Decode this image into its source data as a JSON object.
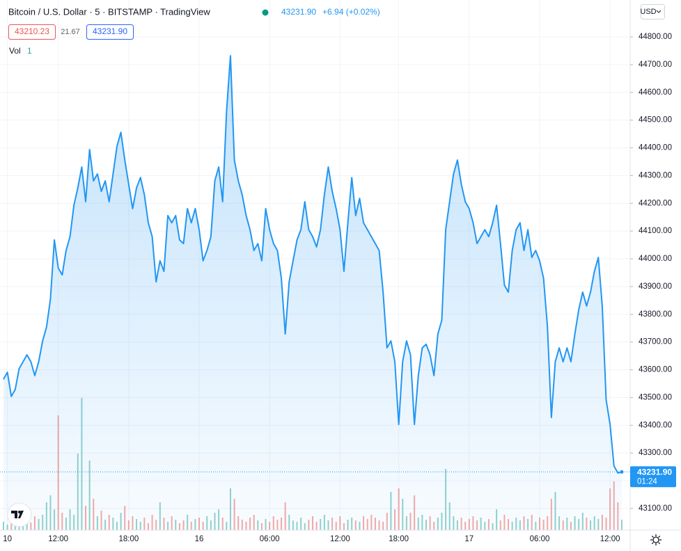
{
  "chart_data": {
    "type": "area",
    "title": "Bitcoin / U.S. Dollar · 5 · BITSTAMP · TradingView",
    "last_price": "43231.90",
    "change": "+6.94 (+0.02%)",
    "bid": "43210.23",
    "spread": "21.67",
    "ask": "43231.90",
    "currency": "USD",
    "price_tag": "43231.90",
    "countdown": "01:24",
    "color": "#2196f3",
    "grid": true,
    "ylim": [
      43022,
      44933
    ],
    "yticks": [
      {
        "value": 43100,
        "label": "43100.00"
      },
      {
        "value": 43200,
        "label": "43200.00"
      },
      {
        "value": 43300,
        "label": "43300.00"
      },
      {
        "value": 43400,
        "label": "43400.00"
      },
      {
        "value": 43500,
        "label": "43500.00"
      },
      {
        "value": 43600,
        "label": "43600.00"
      },
      {
        "value": 43700,
        "label": "43700.00"
      },
      {
        "value": 43800,
        "label": "43800.00"
      },
      {
        "value": 43900,
        "label": "43900.00"
      },
      {
        "value": 44000,
        "label": "44000.00"
      },
      {
        "value": 44100,
        "label": "44100.00"
      },
      {
        "value": 44200,
        "label": "44200.00"
      },
      {
        "value": 44300,
        "label": "44300.00"
      },
      {
        "value": 44400,
        "label": "44400.00"
      },
      {
        "value": 44500,
        "label": "44500.00"
      },
      {
        "value": 44600,
        "label": "44600.00"
      },
      {
        "value": 44700,
        "label": "44700.00"
      },
      {
        "value": 44800,
        "label": "44800.00"
      }
    ],
    "categories": [
      null,
      "10",
      null,
      null,
      null,
      null,
      null,
      null,
      null,
      null,
      null,
      null,
      null,
      null,
      "12:00",
      null,
      null,
      null,
      null,
      null,
      null,
      null,
      null,
      null,
      null,
      null,
      null,
      null,
      null,
      null,
      null,
      null,
      "18:00",
      null,
      null,
      null,
      null,
      null,
      null,
      null,
      null,
      null,
      null,
      null,
      null,
      null,
      null,
      null,
      null,
      null,
      "16",
      null,
      null,
      null,
      null,
      null,
      null,
      null,
      null,
      null,
      null,
      null,
      null,
      null,
      null,
      null,
      null,
      null,
      "06:00",
      null,
      null,
      null,
      null,
      null,
      null,
      null,
      null,
      null,
      null,
      null,
      null,
      null,
      null,
      null,
      null,
      null,
      "12:00",
      null,
      null,
      null,
      null,
      null,
      null,
      null,
      null,
      null,
      null,
      null,
      null,
      null,
      null,
      "18:00",
      null,
      null,
      null,
      null,
      null,
      null,
      null,
      null,
      null,
      null,
      null,
      null,
      null,
      null,
      null,
      null,
      null,
      "17",
      null,
      null,
      null,
      null,
      null,
      null,
      null,
      null,
      null,
      null,
      null,
      null,
      null,
      null,
      null,
      null,
      null,
      "06:00",
      null,
      null,
      null,
      null,
      null,
      null,
      null,
      null,
      null,
      null,
      null,
      null,
      null,
      null,
      null,
      null,
      null,
      "12:00",
      null,
      null,
      null
    ],
    "values": [
      43566,
      43591,
      43504,
      43529,
      43604,
      43629,
      43654,
      43629,
      43579,
      43629,
      43704,
      43754,
      43855,
      44068,
      43967,
      43942,
      44030,
      44080,
      44193,
      44256,
      44331,
      44206,
      44394,
      44281,
      44306,
      44243,
      44281,
      44206,
      44306,
      44406,
      44456,
      44356,
      44268,
      44181,
      44256,
      44293,
      44231,
      44130,
      44080,
      43917,
      43993,
      43955,
      44156,
      44130,
      44156,
      44068,
      44055,
      44181,
      44130,
      44181,
      44105,
      43993,
      44030,
      44080,
      44281,
      44331,
      44206,
      44532,
      44732,
      44356,
      44281,
      44231,
      44156,
      44105,
      44030,
      44055,
      43993,
      44181,
      44105,
      44055,
      44030,
      43930,
      43729,
      43917,
      43993,
      44068,
      44105,
      44206,
      44105,
      44080,
      44043,
      44105,
      44231,
      44331,
      44243,
      44181,
      44105,
      43955,
      44130,
      44293,
      44156,
      44218,
      44130,
      44105,
      44080,
      44055,
      44030,
      43880,
      43679,
      43704,
      43629,
      43403,
      43629,
      43704,
      43654,
      43403,
      43579,
      43679,
      43692,
      43654,
      43579,
      43729,
      43779,
      44105,
      44206,
      44306,
      44356,
      44268,
      44206,
      44181,
      44130,
      44055,
      44080,
      44105,
      44080,
      44130,
      44193,
      44055,
      43905,
      43880,
      44030,
      44105,
      44130,
      44030,
      44105,
      44005,
      44030,
      43993,
      43930,
      43754,
      43428,
      43629,
      43679,
      43629,
      43679,
      43629,
      43729,
      43817,
      43880,
      43830,
      43880,
      43955,
      44005,
      43830,
      43491,
      43403,
      43253,
      43228,
      43231.9
    ],
    "volume": {
      "label": "Vol",
      "legend_value": "1",
      "up_color": "#26a69a",
      "down_color": "#ef5350",
      "values": [
        12,
        8,
        15,
        10,
        18,
        9,
        14,
        11,
        20,
        16,
        22,
        40,
        50,
        30,
        165,
        25,
        18,
        30,
        22,
        110,
        190,
        35,
        100,
        45,
        20,
        28,
        15,
        22,
        18,
        12,
        25,
        35,
        14,
        20,
        16,
        12,
        18,
        10,
        22,
        15,
        40,
        18,
        12,
        20,
        15,
        10,
        14,
        22,
        12,
        16,
        18,
        12,
        20,
        14,
        25,
        30,
        18,
        12,
        60,
        45,
        20,
        15,
        12,
        18,
        22,
        14,
        10,
        16,
        12,
        20,
        15,
        18,
        40,
        22,
        14,
        12,
        18,
        10,
        15,
        20,
        12,
        16,
        22,
        14,
        18,
        12,
        20,
        10,
        15,
        18,
        14,
        12,
        20,
        16,
        22,
        18,
        14,
        12,
        25,
        55,
        30,
        60,
        45,
        20,
        25,
        50,
        18,
        22,
        15,
        20,
        12,
        18,
        25,
        88,
        40,
        20,
        14,
        18,
        12,
        16,
        20,
        14,
        18,
        12,
        16,
        10,
        30,
        14,
        22,
        16,
        12,
        18,
        14,
        20,
        16,
        22,
        12,
        18,
        15,
        20,
        45,
        55,
        20,
        14,
        18,
        12,
        20,
        16,
        25,
        18,
        14,
        20,
        16,
        22,
        18,
        60,
        70,
        40,
        15
      ]
    }
  }
}
